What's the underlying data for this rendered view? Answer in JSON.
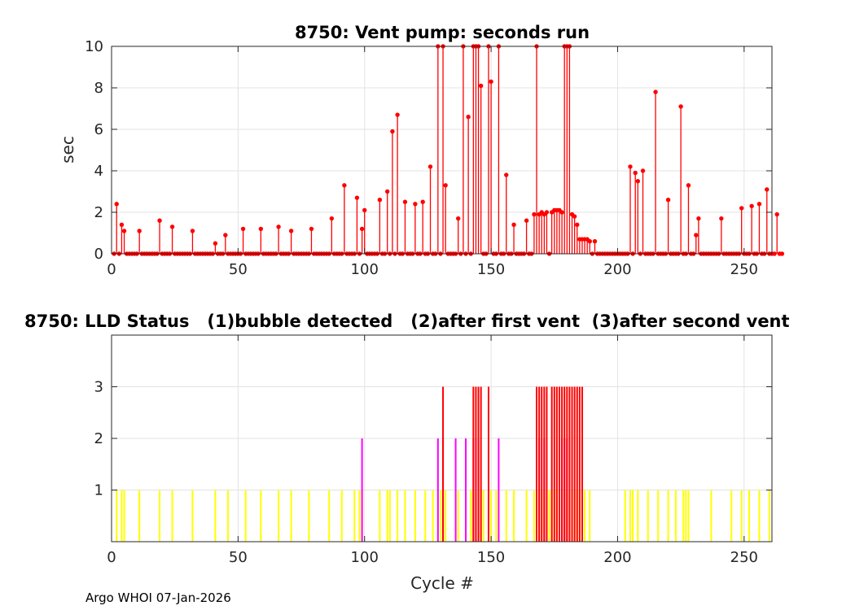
{
  "figure": {
    "footer": "Argo WHOI 07-Jan-2026"
  },
  "chart_data": [
    {
      "type": "stem",
      "title": "8750: Vent pump: seconds run",
      "xlabel": "",
      "ylabel": "sec",
      "xlim": [
        0,
        261
      ],
      "ylim": [
        0,
        10
      ],
      "xticks": [
        0,
        50,
        100,
        150,
        200,
        250
      ],
      "yticks": [
        0,
        2,
        4,
        6,
        8,
        10
      ],
      "grid": true,
      "color": "#ff0000",
      "series": [
        {
          "name": "seconds run",
          "x_start": 1,
          "values": [
            0,
            2.4,
            0,
            1.4,
            1.1,
            0,
            0,
            0,
            0,
            0,
            1.1,
            0,
            0,
            0,
            0,
            0,
            0,
            0,
            1.6,
            0,
            0,
            0,
            0,
            1.3,
            0,
            0,
            0,
            0,
            0,
            0,
            0,
            1.1,
            0,
            0,
            0,
            0,
            0,
            0,
            0,
            0,
            0.5,
            0,
            0,
            0,
            0.9,
            0,
            0,
            0,
            0,
            0,
            0,
            1.2,
            0,
            0,
            0,
            0,
            0,
            0,
            1.2,
            0,
            0,
            0,
            0,
            0,
            0,
            1.3,
            0,
            0,
            0,
            0,
            1.1,
            0,
            0,
            0,
            0,
            0,
            0,
            0,
            1.2,
            0,
            0,
            0,
            0,
            0,
            0,
            0,
            1.7,
            0,
            0,
            0,
            0,
            3.3,
            0,
            0,
            0,
            0,
            2.7,
            0,
            1.2,
            2.1,
            0,
            0,
            0,
            0,
            0,
            2.6,
            0,
            0,
            3.0,
            0,
            5.9,
            0,
            6.7,
            0,
            0,
            2.5,
            0,
            0,
            0,
            2.4,
            0,
            0,
            2.5,
            0,
            0,
            4.2,
            0,
            0,
            10,
            0,
            10,
            3.3,
            0,
            0,
            0,
            0,
            1.7,
            0,
            10,
            0,
            6.6,
            0,
            10,
            10,
            10,
            8.1,
            0,
            0,
            10,
            8.3,
            0,
            0,
            10,
            0,
            0,
            3.8,
            0,
            0,
            1.4,
            0,
            0,
            0,
            0,
            1.6,
            0,
            0,
            1.9,
            10,
            1.9,
            2.0,
            1.9,
            2.0,
            0,
            2.0,
            2.1,
            2.1,
            2.1,
            2.0,
            10,
            10,
            10,
            1.9,
            1.8,
            1.4,
            0.7,
            0.7,
            0.7,
            0.7,
            0.6,
            0,
            0.6,
            0,
            0,
            0,
            0,
            0,
            0,
            0,
            0,
            0,
            0,
            0,
            0,
            0,
            4.2,
            0,
            3.9,
            3.5,
            0,
            4.0,
            0,
            0,
            0,
            0,
            7.8,
            0,
            0,
            0,
            0,
            2.6,
            0,
            0,
            0,
            0,
            7.1,
            0,
            0,
            3.3,
            0,
            0,
            0.9,
            1.7,
            0,
            0,
            0,
            0,
            0,
            0,
            0,
            0,
            1.7,
            0,
            0,
            0,
            0,
            0,
            0,
            0,
            2.2,
            0,
            0,
            0,
            2.3,
            0,
            0,
            2.4,
            0,
            0,
            3.1,
            0,
            0,
            0,
            1.9,
            0,
            0
          ]
        }
      ]
    },
    {
      "type": "bar",
      "title": "8750: LLD Status   (1)bubble detected   (2)after first vent  (3)after second vent",
      "xlabel": "Cycle #",
      "ylabel": "",
      "xlim": [
        0,
        261
      ],
      "ylim": [
        0,
        4
      ],
      "xticks": [
        0,
        50,
        100,
        150,
        200,
        250
      ],
      "yticks": [
        1,
        2,
        3
      ],
      "grid": true,
      "legend": "none",
      "series": [
        {
          "name": "(1)bubble detected",
          "color": "#ffff00",
          "value": 1,
          "x": [
            2,
            4,
            5,
            11,
            19,
            24,
            32,
            41,
            46,
            53,
            59,
            66,
            71,
            78,
            86,
            91,
            96,
            98,
            99,
            106,
            109,
            110,
            113,
            116,
            120,
            124,
            127,
            130,
            131,
            132,
            137,
            140,
            142,
            143,
            144,
            145,
            146,
            147,
            149,
            150,
            152,
            153,
            156,
            159,
            164,
            167,
            168,
            169,
            170,
            171,
            172,
            173,
            174,
            175,
            176,
            177,
            178,
            179,
            180,
            181,
            182,
            183,
            184,
            185,
            186,
            187,
            189,
            203,
            205,
            206,
            208,
            212,
            216,
            220,
            223,
            226,
            227,
            228,
            237,
            245,
            249,
            252,
            256,
            260
          ]
        },
        {
          "name": "(2)after first vent",
          "color": "#ff00ff",
          "value": 2,
          "x": [
            99,
            129,
            131,
            136,
            140,
            143,
            144,
            145,
            149,
            153,
            169,
            171,
            178,
            179,
            180
          ]
        },
        {
          "name": "(3)after second vent",
          "color": "#ff0000",
          "value": 3,
          "x": [
            131,
            143,
            144,
            145,
            146,
            149,
            168,
            169,
            170,
            171,
            172,
            174,
            175,
            176,
            177,
            178,
            179,
            180,
            181,
            182,
            183,
            184,
            185,
            186
          ]
        }
      ]
    }
  ]
}
